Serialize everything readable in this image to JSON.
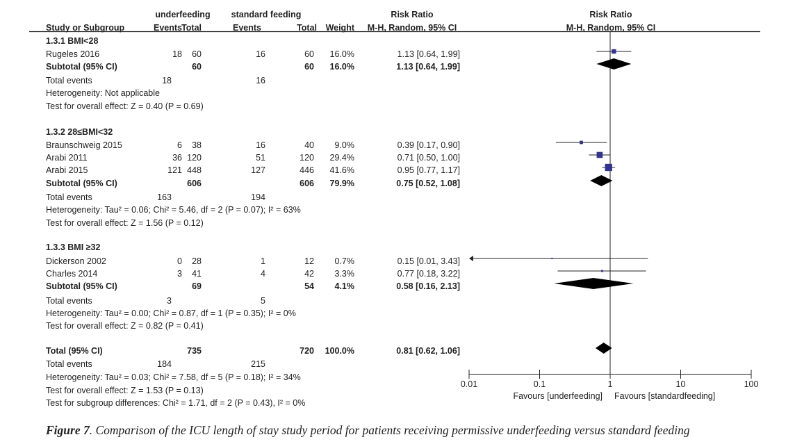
{
  "chart_data": {
    "type": "forest",
    "headers": {
      "group1": "underfeeding",
      "group2": "standard feeding",
      "rr_title": "Risk Ratio",
      "rr_method": "M-H, Random, 95% CI",
      "study": "Study or Subgroup",
      "events": "Events",
      "total": "Total",
      "weight": "Weight"
    },
    "rows": [
      {
        "kind": "heading",
        "label": "1.3.1 BMI<28"
      },
      {
        "kind": "study",
        "label": "Rugeles  2016",
        "e1": "18",
        "n1": "60",
        "e2": "16",
        "n2": "60",
        "weight": "16.0%",
        "ci": "1.13 [0.64, 1.99]",
        "rr": 1.13,
        "lo": 0.64,
        "hi": 1.99,
        "w": 16.0
      },
      {
        "kind": "subtotal",
        "label": "Subtotal (95% CI)",
        "n1": "60",
        "n2": "60",
        "weight": "16.0%",
        "ci": "1.13 [0.64, 1.99]",
        "rr": 1.13,
        "lo": 0.64,
        "hi": 1.99
      },
      {
        "kind": "events",
        "label": "Total events",
        "e1": "18",
        "e2": "16"
      },
      {
        "kind": "note",
        "label": "Heterogeneity: Not applicable"
      },
      {
        "kind": "note",
        "label": "Test for overall effect: Z = 0.40 (P = 0.69)"
      },
      {
        "kind": "heading",
        "label": "1.3.2 28≤BMI<32"
      },
      {
        "kind": "study",
        "label": "Braunschweig 2015",
        "e1": "6",
        "n1": "38",
        "e2": "16",
        "n2": "40",
        "weight": "9.0%",
        "ci": "0.39 [0.17, 0.90]",
        "rr": 0.39,
        "lo": 0.17,
        "hi": 0.9,
        "w": 9.0
      },
      {
        "kind": "study",
        "label": "Arabi  2011",
        "e1": "36",
        "n1": "120",
        "e2": "51",
        "n2": "120",
        "weight": "29.4%",
        "ci": "0.71 [0.50, 1.00]",
        "rr": 0.71,
        "lo": 0.5,
        "hi": 1.0,
        "w": 29.4
      },
      {
        "kind": "study",
        "label": "Arabi  2015",
        "e1": "121",
        "n1": "448",
        "e2": "127",
        "n2": "446",
        "weight": "41.6%",
        "ci": "0.95 [0.77, 1.17]",
        "rr": 0.95,
        "lo": 0.77,
        "hi": 1.17,
        "w": 41.6
      },
      {
        "kind": "subtotal",
        "label": "Subtotal (95% CI)",
        "n1": "606",
        "n2": "606",
        "weight": "79.9%",
        "ci": "0.75 [0.52, 1.08]",
        "rr": 0.75,
        "lo": 0.52,
        "hi": 1.08
      },
      {
        "kind": "events",
        "label": "Total events",
        "e1": "163",
        "e2": "194"
      },
      {
        "kind": "note",
        "label": "Heterogeneity: Tau² = 0.06; Chi² = 5.46, df = 2 (P = 0.07); I² = 63%"
      },
      {
        "kind": "note",
        "label": "Test for overall effect: Z = 1.56 (P = 0.12)"
      },
      {
        "kind": "heading",
        "label": "1.3.3 BMI ≥32"
      },
      {
        "kind": "study",
        "label": "Dickerson  2002",
        "e1": "0",
        "n1": "28",
        "e2": "1",
        "n2": "12",
        "weight": "0.7%",
        "ci": "0.15 [0.01, 3.43]",
        "rr": 0.15,
        "lo": 0.01,
        "hi": 3.43,
        "w": 0.7,
        "arrow_left": true
      },
      {
        "kind": "study",
        "label": "Charles  2014",
        "e1": "3",
        "n1": "41",
        "e2": "4",
        "n2": "42",
        "weight": "3.3%",
        "ci": "0.77 [0.18, 3.22]",
        "rr": 0.77,
        "lo": 0.18,
        "hi": 3.22,
        "w": 3.3
      },
      {
        "kind": "subtotal",
        "label": "Subtotal (95% CI)",
        "n1": "69",
        "n2": "54",
        "weight": "4.1%",
        "ci": "0.58 [0.16, 2.13]",
        "rr": 0.58,
        "lo": 0.16,
        "hi": 2.13
      },
      {
        "kind": "events",
        "label": "Total events",
        "e1": "3",
        "e2": "5"
      },
      {
        "kind": "note",
        "label": "Heterogeneity: Tau² = 0.00; Chi² = 0.87, df = 1 (P = 0.35); I² = 0%"
      },
      {
        "kind": "note",
        "label": "Test for overall effect: Z = 0.82 (P = 0.41)"
      },
      {
        "kind": "subtotal",
        "label": "Total (95% CI)",
        "n1": "735",
        "n2": "720",
        "weight": "100.0%",
        "ci": "0.81 [0.62, 1.06]",
        "rr": 0.81,
        "lo": 0.62,
        "hi": 1.06
      },
      {
        "kind": "events",
        "label": "Total events",
        "e1": "184",
        "e2": "215"
      },
      {
        "kind": "note",
        "label": "Heterogeneity: Tau² = 0.03; Chi² = 7.58, df = 5 (P = 0.18); I² = 34%"
      },
      {
        "kind": "note",
        "label": "Test for overall effect: Z = 1.53 (P = 0.13)"
      },
      {
        "kind": "note",
        "label": "Test for subgroup differences: Chi² = 1.71, df = 2 (P = 0.43), I² = 0%"
      }
    ],
    "x_axis": {
      "scale": "log",
      "ticks": [
        0.01,
        0.1,
        1,
        10,
        100
      ],
      "tick_labels": [
        "0.01",
        "0.1",
        "1",
        "10",
        "100"
      ],
      "xlim": [
        0.01,
        100
      ]
    },
    "favours_left": "Favours [underfeeding]",
    "favours_right": "Favours [standardfeeding]",
    "colors": {
      "square": "#33338f",
      "diamond": "#000000",
      "line": "#222222"
    }
  },
  "caption": {
    "label": "Figure 7",
    "text": ". Comparison of the ICU length of stay study period for patients receiving permissive underfeeding versus standard feeding"
  }
}
